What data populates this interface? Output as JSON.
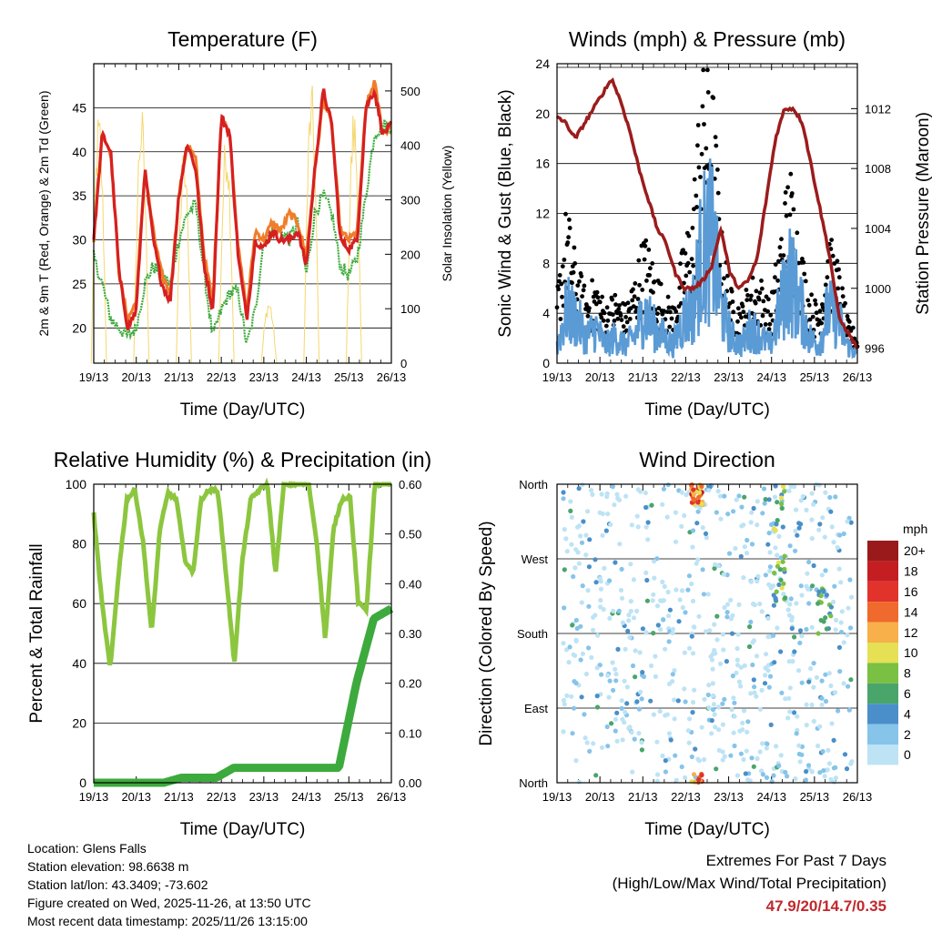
{
  "chart_data": [
    {
      "type": "line",
      "title": "Temperature (F)",
      "xlabel": "Time (Day/UTC)",
      "ylabel": "2m & 9m T (Red, Orange) & 2m Td (Green)",
      "y2label": "Solar Insolation (Yellow)",
      "x_ticks": [
        "19/13",
        "20/13",
        "21/13",
        "22/13",
        "23/13",
        "24/13",
        "25/13",
        "26/13"
      ],
      "ylim": [
        16,
        50
      ],
      "y_ticks": [
        20,
        25,
        30,
        35,
        40,
        45
      ],
      "y2lim": [
        0,
        550
      ],
      "y2_ticks": [
        0,
        100,
        200,
        300,
        400,
        500
      ],
      "series": [
        {
          "name": "2m T",
          "color": "#d62020",
          "values": [
            30,
            42,
            40,
            26,
            20,
            22,
            38,
            30,
            25,
            23,
            35,
            41,
            38,
            27,
            22,
            44,
            42,
            28,
            21,
            30,
            29,
            31,
            30,
            30,
            31,
            27,
            38,
            47,
            43,
            30,
            29,
            30,
            45,
            47,
            42,
            43
          ]
        },
        {
          "name": "9m T",
          "color": "#f07d2a",
          "values": [
            30,
            42,
            40,
            26,
            21,
            23,
            38,
            31,
            26,
            24,
            35,
            41,
            39,
            28,
            23,
            44,
            42,
            29,
            22,
            31,
            30,
            32,
            31,
            33,
            32,
            28,
            38,
            46,
            43,
            31,
            30,
            31,
            45,
            48,
            42,
            43
          ]
        },
        {
          "name": "2m Td",
          "color": "#3daa3d",
          "values": [
            28,
            25,
            21,
            20,
            19,
            20,
            25,
            27,
            26,
            25,
            30,
            33,
            34,
            26,
            19,
            22,
            24,
            24,
            18,
            22,
            30,
            31,
            31,
            30,
            32,
            26,
            33,
            35,
            33,
            27,
            26,
            28,
            35,
            42,
            43,
            43
          ]
        },
        {
          "name": "Solar Insolation",
          "color": "#f5d76e",
          "axis": "y2",
          "peaks": [
            470,
            480,
            400,
            440,
            120,
            520,
            480
          ]
        }
      ]
    },
    {
      "type": "line",
      "title": "Winds (mph) & Pressure (mb)",
      "xlabel": "Time (Day/UTC)",
      "ylabel": "Sonic Wind & Gust (Blue, Black)",
      "y2label": "Station Pressure (Maroon)",
      "x_ticks": [
        "19/13",
        "20/13",
        "21/13",
        "22/13",
        "23/13",
        "24/13",
        "25/13",
        "26/13"
      ],
      "ylim": [
        0,
        24
      ],
      "y_ticks": [
        0,
        4,
        8,
        12,
        16,
        20,
        24
      ],
      "y2lim": [
        995,
        1015
      ],
      "y2_ticks": [
        996,
        1000,
        1004,
        1008,
        1012
      ],
      "series": [
        {
          "name": "Station Pressure",
          "color": "#9b1c1c",
          "axis": "y2",
          "values": [
            1011.5,
            1011,
            1010,
            1011,
            1012,
            1013,
            1014,
            1012.5,
            1010.5,
            1008,
            1006,
            1004,
            1003,
            1001,
            1000,
            1000,
            1000.5,
            1001.5,
            1004,
            1001,
            1000,
            1000.5,
            1002,
            1006,
            1010,
            1012,
            1012,
            1011,
            1008,
            1005,
            1002,
            998,
            997,
            996
          ]
        },
        {
          "name": "Sonic Wind",
          "color": "#5b9bd5",
          "values": [
            2,
            6,
            5,
            3,
            4,
            2,
            3,
            2,
            3,
            6,
            4,
            3,
            2,
            5,
            6,
            13,
            14,
            6,
            3,
            2,
            4,
            3,
            2,
            6,
            10,
            7,
            3,
            2,
            6,
            5,
            2,
            1
          ]
        },
        {
          "name": "Gust",
          "color": "#000000",
          "values": [
            5,
            11,
            7,
            5,
            6,
            4,
            5,
            4,
            6,
            9,
            7,
            5,
            4,
            8,
            11,
            22,
            20,
            9,
            5,
            4,
            6,
            6,
            4,
            9,
            14,
            9,
            5,
            4,
            9,
            7,
            3,
            2
          ]
        }
      ]
    },
    {
      "type": "line",
      "title": "Relative Humidity (%) & Precipitation (in)",
      "xlabel": "Time (Day/UTC)",
      "ylabel": "Percent & Total Rainfall",
      "x_ticks": [
        "19/13",
        "20/13",
        "21/13",
        "22/13",
        "23/13",
        "24/13",
        "25/13",
        "26/13"
      ],
      "ylim": [
        0,
        100
      ],
      "y_ticks": [
        0,
        20,
        40,
        60,
        80,
        100
      ],
      "y2lim": [
        0,
        0.6
      ],
      "y2_ticks": [
        "0.00",
        "0.10",
        "0.20",
        "0.30",
        "0.40",
        "0.50",
        "0.60"
      ],
      "series": [
        {
          "name": "Relative Humidity",
          "color": "#8cc63f",
          "values": [
            90,
            60,
            38,
            70,
            95,
            98,
            80,
            50,
            85,
            97,
            95,
            75,
            70,
            95,
            98,
            98,
            70,
            40,
            75,
            95,
            98,
            100,
            70,
            100,
            100,
            100,
            100,
            80,
            48,
            85,
            95,
            96,
            60,
            58,
            100,
            100,
            100
          ]
        },
        {
          "name": "Total Precipitation",
          "color": "#3daa3d",
          "axis": "y2",
          "values": [
            0,
            0,
            0,
            0,
            0,
            0.01,
            0.01,
            0.01,
            0.03,
            0.03,
            0.03,
            0.03,
            0.03,
            0.03,
            0.03,
            0.2,
            0.33,
            0.35
          ]
        }
      ]
    },
    {
      "type": "scatter",
      "title": "Wind Direction",
      "xlabel": "Time (Day/UTC)",
      "ylabel": "Direction (Colored By Speed)",
      "x_ticks": [
        "19/13",
        "20/13",
        "21/13",
        "22/13",
        "23/13",
        "24/13",
        "25/13",
        "26/13"
      ],
      "y_ticks": [
        "North",
        "East",
        "South",
        "West",
        "North"
      ],
      "legend": {
        "title": "mph",
        "labels": [
          "0",
          "2",
          "4",
          "6",
          "8",
          "10",
          "12",
          "14",
          "16",
          "18",
          "20+"
        ],
        "colors": [
          "#bde3f5",
          "#86c4ea",
          "#4a8fc9",
          "#4aa56a",
          "#7ac043",
          "#e5e054",
          "#f7b04a",
          "#ef6a2c",
          "#e1332b",
          "#c41e22",
          "#9a1a1b"
        ]
      }
    }
  ],
  "info": {
    "location": "Location: Glens Falls",
    "elevation": "Station elevation: 98.6638 m",
    "latlon": "Station lat/lon: 43.3409; -73.602",
    "created": "Figure created on Wed, 2025-11-26, at 13:50 UTC",
    "recent": "Most recent data timestamp: 2025/11/26 13:15:00"
  },
  "extremes": {
    "title": "Extremes For Past 7 Days",
    "subtitle": "(High/Low/Max Wind/Total Precipitation)",
    "values": "47.9/20/14.7/0.35"
  }
}
